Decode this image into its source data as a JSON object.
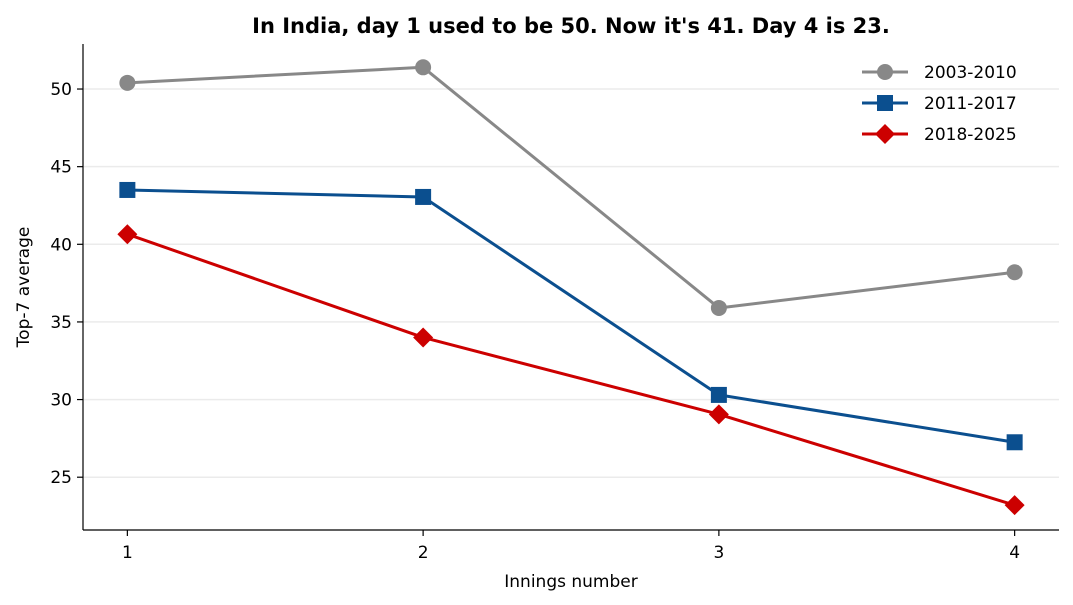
{
  "chart_data": {
    "type": "line",
    "title": "In India, day 1 used to be 50. Now it's 41. Day 4 is 23.",
    "xlabel": "Innings number",
    "ylabel": "Top-7 average",
    "x": [
      1,
      2,
      3,
      4
    ],
    "x_tick_labels": [
      "1",
      "2",
      "3",
      "4"
    ],
    "y_ticks": [
      25,
      30,
      35,
      40,
      45,
      50
    ],
    "y_tick_labels": [
      "25",
      "30",
      "35",
      "40",
      "45",
      "50"
    ],
    "xlim": [
      0.85,
      4.15
    ],
    "ylim": [
      21.6,
      52.9
    ],
    "grid": "horizontal",
    "legend_position": "top-right",
    "series": [
      {
        "name": "2003-2010",
        "values": [
          50.4,
          51.4,
          35.9,
          38.2
        ],
        "color": "#888888",
        "marker": "circle"
      },
      {
        "name": "2011-2017",
        "values": [
          43.5,
          43.05,
          30.3,
          27.25
        ],
        "color": "#0b4f8f",
        "marker": "square"
      },
      {
        "name": "2018-2025",
        "values": [
          40.65,
          34.0,
          29.05,
          23.2
        ],
        "color": "#cc0000",
        "marker": "diamond"
      }
    ]
  }
}
